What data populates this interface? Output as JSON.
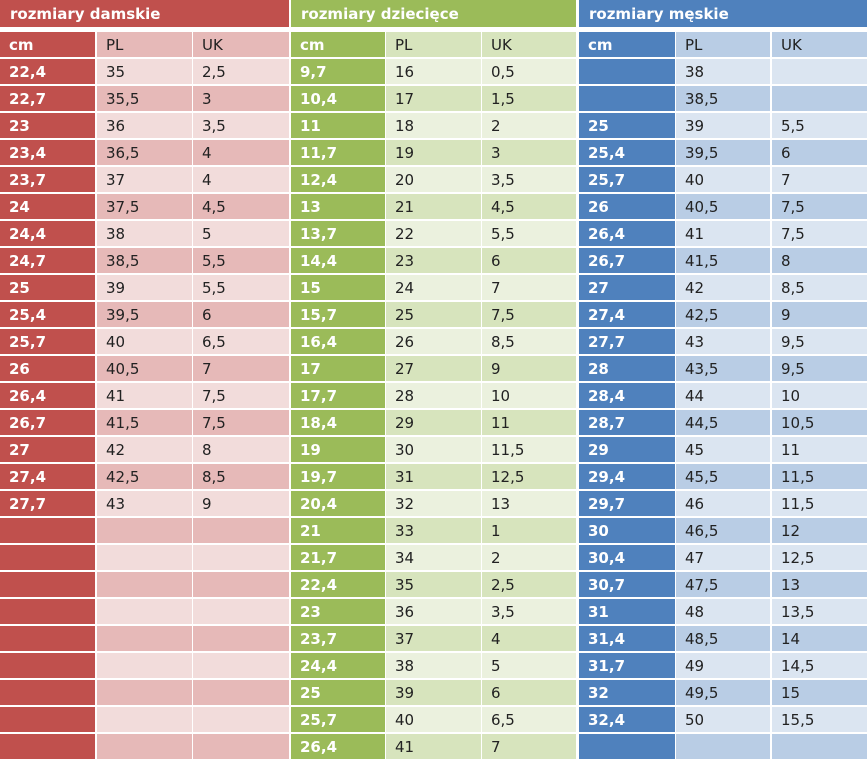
{
  "colors": {
    "women": {
      "dark": "#c0504d",
      "mid": "#e6b9b8",
      "light": "#f2dcdb"
    },
    "kids": {
      "dark": "#9bbb59",
      "mid": "#d7e4bd",
      "light": "#ebf1de"
    },
    "men": {
      "dark": "#4f81bd",
      "mid": "#b9cde5",
      "light": "#dbe5f1"
    }
  },
  "headers": [
    "cm",
    "PL",
    "UK"
  ],
  "groups": [
    {
      "key": "women",
      "title": "rozmiary damskie",
      "rows": [
        [
          "22,4",
          "35",
          "2,5"
        ],
        [
          "22,7",
          "35,5",
          "3"
        ],
        [
          "23",
          "36",
          "3,5"
        ],
        [
          "23,4",
          "36,5",
          "4"
        ],
        [
          "23,7",
          "37",
          "4"
        ],
        [
          "24",
          "37,5",
          "4,5"
        ],
        [
          "24,4",
          "38",
          "5"
        ],
        [
          "24,7",
          "38,5",
          "5,5"
        ],
        [
          "25",
          "39",
          "5,5"
        ],
        [
          "25,4",
          "39,5",
          "6"
        ],
        [
          "25,7",
          "40",
          "6,5"
        ],
        [
          "26",
          "40,5",
          "7"
        ],
        [
          "26,4",
          "41",
          "7,5"
        ],
        [
          "26,7",
          "41,5",
          "7,5"
        ],
        [
          "27",
          "42",
          "8"
        ],
        [
          "27,4",
          "42,5",
          "8,5"
        ],
        [
          "27,7",
          "43",
          "9"
        ],
        [
          "",
          "",
          ""
        ],
        [
          "",
          "",
          ""
        ],
        [
          "",
          "",
          ""
        ],
        [
          "",
          "",
          ""
        ],
        [
          "",
          "",
          ""
        ],
        [
          "",
          "",
          ""
        ],
        [
          "",
          "",
          ""
        ],
        [
          "",
          "",
          ""
        ],
        [
          "",
          "",
          ""
        ]
      ]
    },
    {
      "key": "kids",
      "title": "rozmiary dziecięce",
      "rows": [
        [
          "9,7",
          "16",
          "0,5"
        ],
        [
          "10,4",
          "17",
          "1,5"
        ],
        [
          "11",
          "18",
          "2"
        ],
        [
          "11,7",
          "19",
          "3"
        ],
        [
          "12,4",
          "20",
          "3,5"
        ],
        [
          "13",
          "21",
          "4,5"
        ],
        [
          "13,7",
          "22",
          "5,5"
        ],
        [
          "14,4",
          "23",
          "6"
        ],
        [
          "15",
          "24",
          "7"
        ],
        [
          "15,7",
          "25",
          "7,5"
        ],
        [
          "16,4",
          "26",
          "8,5"
        ],
        [
          "17",
          "27",
          "9"
        ],
        [
          "17,7",
          "28",
          "10"
        ],
        [
          "18,4",
          "29",
          "11"
        ],
        [
          "19",
          "30",
          "11,5"
        ],
        [
          "19,7",
          "31",
          "12,5"
        ],
        [
          "20,4",
          "32",
          "13"
        ],
        [
          "21",
          "33",
          "1"
        ],
        [
          "21,7",
          "34",
          "2"
        ],
        [
          "22,4",
          "35",
          "2,5"
        ],
        [
          "23",
          "36",
          "3,5"
        ],
        [
          "23,7",
          "37",
          "4"
        ],
        [
          "24,4",
          "38",
          "5"
        ],
        [
          "25",
          "39",
          "6"
        ],
        [
          "25,7",
          "40",
          "6,5"
        ],
        [
          "26,4",
          "41",
          "7"
        ]
      ]
    },
    {
      "key": "men",
      "title": "rozmiary męskie",
      "rows": [
        [
          "",
          "38",
          ""
        ],
        [
          "",
          "38,5",
          ""
        ],
        [
          "25",
          "39",
          "5,5"
        ],
        [
          "25,4",
          "39,5",
          "6"
        ],
        [
          "25,7",
          "40",
          "7"
        ],
        [
          "26",
          "40,5",
          "7,5"
        ],
        [
          "26,4",
          "41",
          "7,5"
        ],
        [
          "26,7",
          "41,5",
          "8"
        ],
        [
          "27",
          "42",
          "8,5"
        ],
        [
          "27,4",
          "42,5",
          "9"
        ],
        [
          "27,7",
          "43",
          "9,5"
        ],
        [
          "28",
          "43,5",
          "9,5"
        ],
        [
          "28,4",
          "44",
          "10"
        ],
        [
          "28,7",
          "44,5",
          "10,5"
        ],
        [
          "29",
          "45",
          "11"
        ],
        [
          "29,4",
          "45,5",
          "11,5"
        ],
        [
          "29,7",
          "46",
          "11,5"
        ],
        [
          "30",
          "46,5",
          "12"
        ],
        [
          "30,4",
          "47",
          "12,5"
        ],
        [
          "30,7",
          "47,5",
          "13"
        ],
        [
          "31",
          "48",
          "13,5"
        ],
        [
          "31,4",
          "48,5",
          "14"
        ],
        [
          "31,7",
          "49",
          "14,5"
        ],
        [
          "32",
          "49,5",
          "15"
        ],
        [
          "32,4",
          "50",
          "15,5"
        ],
        [
          "",
          "",
          ""
        ]
      ]
    }
  ]
}
